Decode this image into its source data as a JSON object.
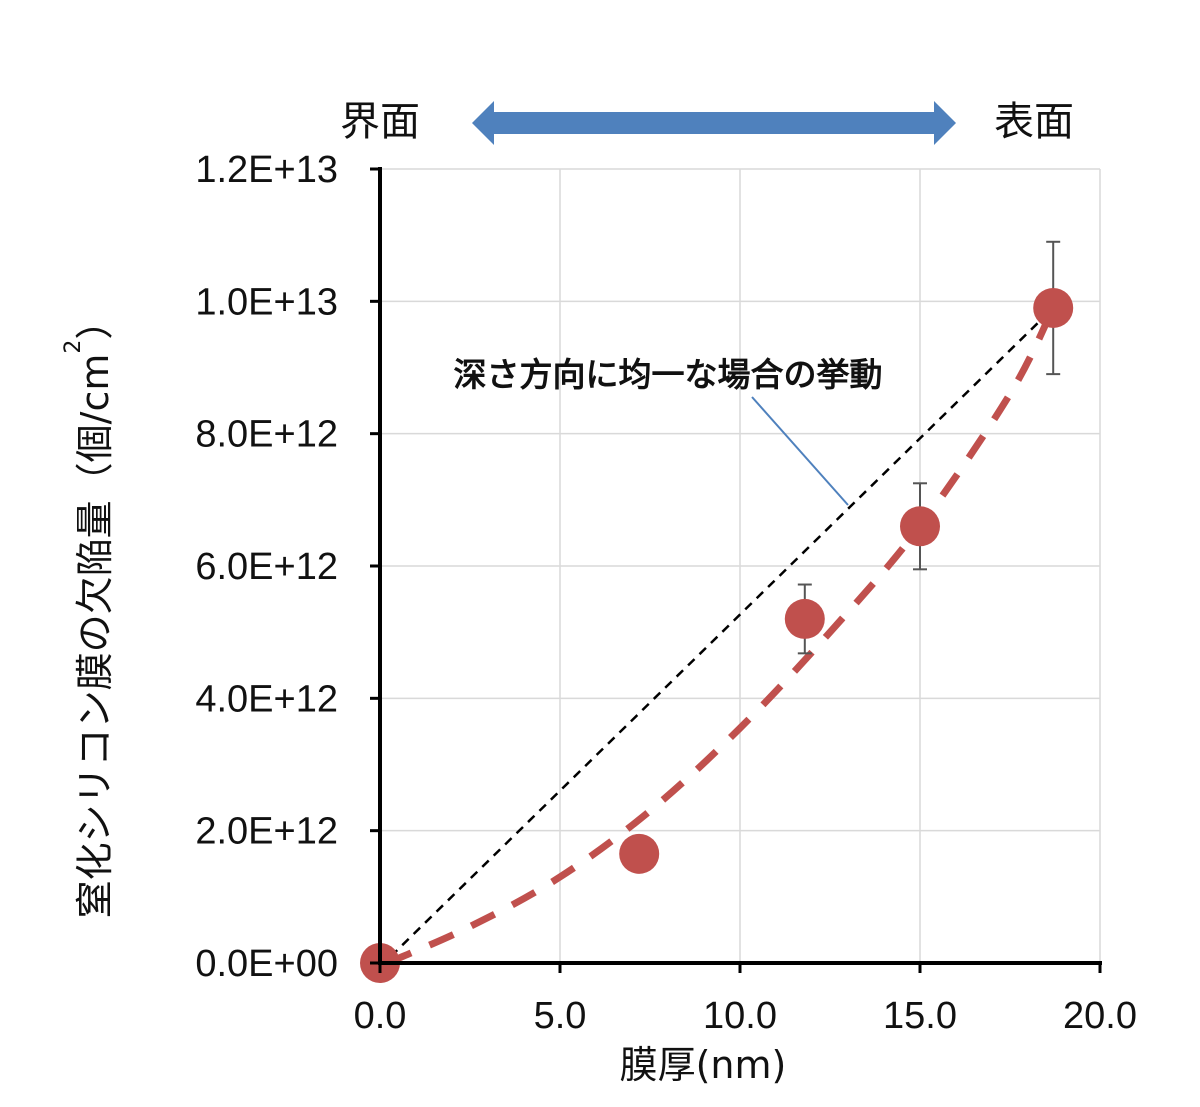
{
  "chart_data": {
    "type": "scatter",
    "xlabel": "膜厚(nm)",
    "ylabel": "窒化シリコン膜の欠陥量（個/cm",
    "ylabel_superscript": "2",
    "ylabel_close": "）",
    "xlim": [
      0,
      20
    ],
    "ylim": [
      0,
      12000000000000.0
    ],
    "grid": true,
    "x_ticks": [
      "0.0",
      "5.0",
      "10.0",
      "15.0",
      "20.0"
    ],
    "y_ticks": [
      "0.0E+00",
      "2.0E+12",
      "4.0E+12",
      "6.0E+12",
      "8.0E+12",
      "1.0E+13",
      "1.2E+13"
    ],
    "series": [
      {
        "kind": "scatter",
        "color": "#c0504d",
        "points": [
          {
            "x": 0.0,
            "y": 0,
            "err": 0
          },
          {
            "x": 7.2,
            "y": 1650000000000.0,
            "err": 0
          },
          {
            "x": 11.8,
            "y": 5200000000000.0,
            "err": 520000000000.0
          },
          {
            "x": 15.0,
            "y": 6600000000000.0,
            "err": 650000000000.0
          },
          {
            "x": 18.7,
            "y": 9900000000000.0,
            "err": 1000000000000.0
          }
        ]
      },
      {
        "kind": "curve",
        "style": "dashed",
        "color": "#c0504d",
        "x": [
          0.2,
          2.5,
          5.0,
          7.5,
          10.0,
          12.5,
          15.0,
          17.5,
          18.7
        ],
        "y": [
          0.0,
          550000000000.0,
          1300000000000.0,
          2300000000000.0,
          3550000000000.0,
          5000000000000.0,
          6600000000000.0,
          8600000000000.0,
          9900000000000.0
        ]
      },
      {
        "kind": "line",
        "style": "dashed",
        "color": "#000000",
        "x": [
          0.3,
          18.7
        ],
        "y": [
          100000000000.0,
          9900000000000.0
        ]
      }
    ],
    "annotation": {
      "text": "深さ方向に均一な場合の挙動",
      "pointer_color": "#4f81bd"
    },
    "top_labels": {
      "left": "界面",
      "right": "表面",
      "arrow_color": "#4f81bd"
    }
  }
}
